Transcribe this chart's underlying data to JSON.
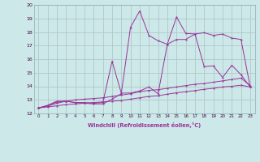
{
  "xlabel": "Windchill (Refroidissement éolien,°C)",
  "bg_color": "#cce8e8",
  "line_color": "#993399",
  "grid_color": "#b0c8c8",
  "xlim": [
    -0.5,
    23.5
  ],
  "ylim": [
    12,
    20
  ],
  "yticks": [
    12,
    13,
    14,
    15,
    16,
    17,
    18,
    19,
    20
  ],
  "xticks": [
    0,
    1,
    2,
    3,
    4,
    5,
    6,
    7,
    8,
    9,
    10,
    11,
    12,
    13,
    14,
    15,
    16,
    17,
    18,
    19,
    20,
    21,
    22,
    23
  ],
  "series": [
    [
      12.4,
      12.6,
      12.9,
      12.9,
      12.8,
      12.8,
      12.75,
      12.8,
      15.85,
      13.5,
      13.5,
      13.65,
      13.95,
      13.45,
      17.1,
      19.1,
      17.9,
      17.85,
      15.45,
      15.5,
      14.65,
      15.55,
      14.85,
      13.95
    ],
    [
      12.4,
      12.55,
      12.85,
      12.9,
      12.8,
      12.75,
      12.7,
      12.7,
      13.05,
      13.45,
      18.35,
      19.55,
      17.75,
      17.35,
      17.1,
      17.45,
      17.45,
      17.85,
      17.95,
      17.75,
      17.85,
      17.55,
      17.45,
      13.95
    ],
    [
      12.4,
      12.55,
      12.75,
      12.9,
      13.0,
      13.05,
      13.1,
      13.15,
      13.25,
      13.35,
      13.45,
      13.6,
      13.7,
      13.75,
      13.85,
      13.95,
      14.05,
      14.15,
      14.2,
      14.3,
      14.4,
      14.5,
      14.6,
      14.05
    ],
    [
      12.4,
      12.48,
      12.56,
      12.65,
      12.7,
      12.75,
      12.8,
      12.85,
      12.9,
      12.95,
      13.05,
      13.15,
      13.25,
      13.3,
      13.42,
      13.52,
      13.6,
      13.68,
      13.78,
      13.85,
      13.95,
      14.0,
      14.08,
      13.95
    ]
  ]
}
